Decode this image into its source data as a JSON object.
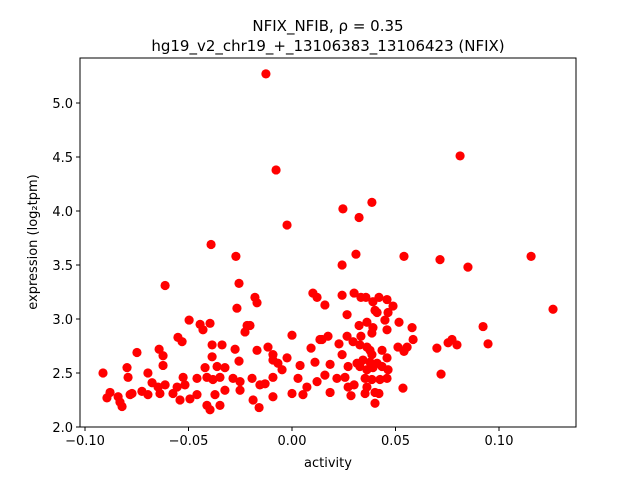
{
  "chart_data": {
    "type": "scatter",
    "title_line1": "NFIX_NFIB, ρ = 0.35",
    "title_line2": "hg19_v2_chr19_+_13106383_13106423 (NFIX)",
    "xlabel": "activity",
    "ylabel": "expression (log₂tpm)",
    "xlim": [
      -0.102,
      0.137
    ],
    "ylim": [
      2.0,
      5.52
    ],
    "xticks": [
      -0.1,
      -0.05,
      0.0,
      0.05,
      0.1
    ],
    "xtick_labels": [
      "−0.10",
      "−0.05",
      "0.00",
      "0.05",
      "0.10"
    ],
    "yticks": [
      2.0,
      2.5,
      3.0,
      3.5,
      4.0,
      4.5,
      5.0
    ],
    "ytick_labels": [
      "2.0",
      "2.5",
      "3.0",
      "3.5",
      "4.0",
      "4.5",
      "5.0"
    ],
    "grid": false,
    "marker_color": "#ff0000",
    "points": [
      [
        -0.0913,
        2.5
      ],
      [
        -0.0879,
        2.32
      ],
      [
        -0.0894,
        2.27
      ],
      [
        -0.084,
        2.28
      ],
      [
        -0.0821,
        2.19
      ],
      [
        -0.0831,
        2.23
      ],
      [
        -0.0797,
        2.55
      ],
      [
        -0.0792,
        2.46
      ],
      [
        -0.0782,
        2.3
      ],
      [
        -0.0773,
        2.31
      ],
      [
        -0.0749,
        2.69
      ],
      [
        -0.0725,
        2.33
      ],
      [
        -0.0696,
        2.5
      ],
      [
        -0.0696,
        2.3
      ],
      [
        -0.0676,
        2.41
      ],
      [
        -0.0642,
        2.72
      ],
      [
        -0.0623,
        2.66
      ],
      [
        -0.0623,
        2.57
      ],
      [
        -0.0638,
        2.31
      ],
      [
        -0.0613,
        2.39
      ],
      [
        -0.0647,
        2.37
      ],
      [
        -0.0613,
        3.31
      ],
      [
        -0.0551,
        2.83
      ],
      [
        -0.0531,
        2.79
      ],
      [
        -0.0555,
        2.37
      ],
      [
        -0.0526,
        2.46
      ],
      [
        -0.0541,
        2.25
      ],
      [
        -0.0517,
        2.39
      ],
      [
        -0.0575,
        2.31
      ],
      [
        -0.0497,
        2.99
      ],
      [
        -0.0493,
        2.26
      ],
      [
        -0.0444,
        2.95
      ],
      [
        -0.043,
        2.9
      ],
      [
        -0.0396,
        2.96
      ],
      [
        -0.0459,
        2.45
      ],
      [
        -0.0459,
        2.3
      ],
      [
        -0.042,
        2.55
      ],
      [
        -0.0386,
        2.76
      ],
      [
        -0.0386,
        2.65
      ],
      [
        -0.0338,
        2.76
      ],
      [
        -0.0362,
        2.56
      ],
      [
        -0.0324,
        2.55
      ],
      [
        -0.0411,
        2.46
      ],
      [
        -0.0382,
        2.44
      ],
      [
        -0.0348,
        2.46
      ],
      [
        -0.0372,
        2.3
      ],
      [
        -0.0396,
        2.16
      ],
      [
        -0.0411,
        2.2
      ],
      [
        -0.0348,
        2.2
      ],
      [
        -0.0324,
        2.34
      ],
      [
        -0.0275,
        2.72
      ],
      [
        -0.0256,
        2.61
      ],
      [
        -0.0266,
        3.1
      ],
      [
        -0.0256,
        3.33
      ],
      [
        -0.0285,
        2.45
      ],
      [
        -0.0251,
        2.42
      ],
      [
        -0.0251,
        2.34
      ],
      [
        -0.0217,
        2.94
      ],
      [
        -0.0203,
        2.94
      ],
      [
        -0.0227,
        2.88
      ],
      [
        -0.0179,
        3.2
      ],
      [
        -0.0169,
        3.15
      ],
      [
        -0.0169,
        2.71
      ],
      [
        -0.0193,
        2.45
      ],
      [
        -0.0188,
        2.25
      ],
      [
        -0.0159,
        2.18
      ],
      [
        -0.0155,
        2.39
      ],
      [
        -0.013,
        2.4
      ],
      [
        -0.0116,
        2.74
      ],
      [
        -0.0092,
        2.67
      ],
      [
        -0.0092,
        2.62
      ],
      [
        -0.0068,
        2.59
      ],
      [
        -0.0048,
        2.53
      ],
      [
        -0.0024,
        2.64
      ],
      [
        -0.0092,
        2.46
      ],
      [
        -0.0092,
        2.28
      ],
      [
        0.0,
        2.85
      ],
      [
        0.0,
        2.31
      ],
      [
        0.0029,
        2.45
      ],
      [
        0.0039,
        2.57
      ],
      [
        0.0053,
        2.3
      ],
      [
        0.0072,
        2.37
      ],
      [
        0.0092,
        2.73
      ],
      [
        0.0111,
        2.6
      ],
      [
        0.0101,
        3.24
      ],
      [
        0.0121,
        3.2
      ],
      [
        0.0135,
        2.81
      ],
      [
        0.0121,
        2.42
      ],
      [
        0.0159,
        3.13
      ],
      [
        0.0242,
        3.22
      ],
      [
        0.03,
        3.24
      ],
      [
        0.0333,
        3.2
      ],
      [
        0.0357,
        3.2
      ],
      [
        0.0391,
        3.16
      ],
      [
        0.042,
        3.2
      ],
      [
        0.0459,
        3.18
      ],
      [
        0.0488,
        3.12
      ],
      [
        0.0401,
        3.08
      ],
      [
        0.0411,
        3.06
      ],
      [
        0.0464,
        3.06
      ],
      [
        0.0266,
        3.04
      ],
      [
        0.0449,
        2.99
      ],
      [
        0.0517,
        2.97
      ],
      [
        0.0362,
        2.97
      ],
      [
        0.0324,
        2.94
      ],
      [
        0.0391,
        2.92
      ],
      [
        0.0386,
        2.87
      ],
      [
        0.0459,
        2.9
      ],
      [
        0.058,
        2.92
      ],
      [
        0.0174,
        2.84
      ],
      [
        0.0145,
        2.81
      ],
      [
        0.0266,
        2.84
      ],
      [
        0.0333,
        2.84
      ],
      [
        0.0295,
        2.79
      ],
      [
        0.0227,
        2.77
      ],
      [
        0.0328,
        2.76
      ],
      [
        0.0362,
        2.74
      ],
      [
        0.0377,
        2.71
      ],
      [
        0.0435,
        2.71
      ],
      [
        0.0585,
        2.81
      ],
      [
        0.0512,
        2.74
      ],
      [
        0.0541,
        2.7
      ],
      [
        0.0556,
        2.74
      ],
      [
        0.0242,
        2.67
      ],
      [
        0.0386,
        2.67
      ],
      [
        0.0459,
        2.64
      ],
      [
        0.0343,
        2.62
      ],
      [
        0.0314,
        2.59
      ],
      [
        0.0377,
        2.6
      ],
      [
        0.0411,
        2.59
      ],
      [
        0.0271,
        2.56
      ],
      [
        0.0328,
        2.56
      ],
      [
        0.0362,
        2.53
      ],
      [
        0.0391,
        2.55
      ],
      [
        0.0435,
        2.56
      ],
      [
        0.0464,
        2.53
      ],
      [
        0.0184,
        2.58
      ],
      [
        0.0159,
        2.48
      ],
      [
        0.0217,
        2.45
      ],
      [
        0.0256,
        2.46
      ],
      [
        0.0271,
        2.37
      ],
      [
        0.03,
        2.39
      ],
      [
        0.0353,
        2.45
      ],
      [
        0.0386,
        2.44
      ],
      [
        0.0425,
        2.44
      ],
      [
        0.0459,
        2.45
      ],
      [
        0.0362,
        2.37
      ],
      [
        0.0401,
        2.32
      ],
      [
        0.042,
        2.31
      ],
      [
        0.0353,
        2.31
      ],
      [
        0.0285,
        2.29
      ],
      [
        0.0184,
        2.32
      ],
      [
        0.0401,
        2.22
      ],
      [
        0.0536,
        2.36
      ],
      [
        0.07,
        2.73
      ],
      [
        0.0754,
        2.78
      ],
      [
        0.0773,
        2.81
      ],
      [
        0.0797,
        2.76
      ],
      [
        0.0923,
        2.93
      ],
      [
        0.0947,
        2.77
      ],
      [
        0.072,
        2.49
      ],
      [
        -0.0126,
        5.27
      ],
      [
        -0.0077,
        4.38
      ],
      [
        -0.0024,
        3.87
      ],
      [
        -0.0391,
        3.69
      ],
      [
        -0.0271,
        3.58
      ],
      [
        0.0246,
        4.02
      ],
      [
        0.0324,
        3.94
      ],
      [
        0.0386,
        4.08
      ],
      [
        0.0309,
        3.6
      ],
      [
        0.0242,
        3.5
      ],
      [
        0.0541,
        3.58
      ],
      [
        0.0812,
        4.51
      ],
      [
        0.0715,
        3.55
      ],
      [
        0.085,
        3.48
      ],
      [
        0.1155,
        3.58
      ],
      [
        0.1261,
        3.09
      ]
    ]
  }
}
